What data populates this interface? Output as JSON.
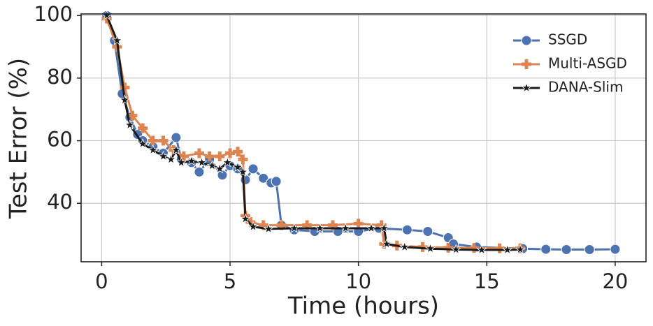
{
  "chart_data": {
    "type": "line",
    "xlabel": "Time (hours)",
    "ylabel": "Test Error (%)",
    "xlim": [
      -0.8,
      21.2
    ],
    "ylim": [
      21.3,
      100.5
    ],
    "xticks": [
      0,
      5,
      10,
      15,
      20
    ],
    "yticks": [
      40,
      60,
      80,
      100
    ],
    "grid": true,
    "legend": "upper right",
    "series": [
      {
        "name": "SSGD",
        "color": "#4c72b0",
        "marker": "circle",
        "x": [
          0.2,
          0.5,
          0.8,
          1.1,
          1.4,
          1.6,
          2.0,
          2.4,
          2.9,
          3.1,
          3.5,
          3.8,
          4.2,
          4.7,
          5.0,
          5.3,
          5.6,
          5.9,
          6.3,
          6.6,
          6.8,
          7.0,
          7.5,
          8.3,
          9.2,
          10.0,
          10.8,
          11.9,
          12.7,
          13.5,
          13.7,
          14.6,
          16.4,
          17.3,
          18.1,
          19.0,
          20.0
        ],
        "values": [
          100,
          92,
          75,
          67.5,
          62,
          60,
          58,
          56,
          61,
          54,
          53,
          50,
          54,
          49,
          52,
          51,
          47.5,
          51,
          48,
          46.5,
          47,
          33,
          31.5,
          31,
          31,
          31,
          32,
          31.5,
          31,
          29,
          27,
          26,
          25.5,
          25.3,
          25.2,
          25.2,
          25.3
        ]
      },
      {
        "name": "Multi-ASGD",
        "color": "#dd8452",
        "marker": "plus",
        "x": [
          0.2,
          0.6,
          0.9,
          1.2,
          1.6,
          2.0,
          2.4,
          2.8,
          3.2,
          3.8,
          4.2,
          4.6,
          5.0,
          5.3,
          5.5,
          5.6,
          5.8,
          6.3,
          7.0,
          8.0,
          9.0,
          10.0,
          10.9,
          11.0,
          11.5,
          12.5,
          13.5,
          14.5,
          15.5,
          16.3
        ],
        "values": [
          99,
          90,
          77,
          68,
          64,
          60,
          60,
          57,
          55,
          56,
          55,
          55,
          56,
          56.5,
          54,
          36,
          34,
          33,
          33,
          33,
          33,
          33.5,
          33,
          27,
          26.5,
          26,
          25.8,
          25.7,
          25.6,
          25.6
        ]
      },
      {
        "name": "DANA-Slim",
        "color": "#1a1a1a",
        "marker": "star",
        "x": [
          0.2,
          0.6,
          0.9,
          1.1,
          1.6,
          2.0,
          2.4,
          2.7,
          2.9,
          3.1,
          3.5,
          3.9,
          4.3,
          4.6,
          4.9,
          5.3,
          5.5,
          5.6,
          5.9,
          6.5,
          7.5,
          8.5,
          9.5,
          10.5,
          11.0,
          11.1,
          11.8,
          12.8,
          13.8,
          14.8,
          15.8,
          16.3
        ],
        "values": [
          100,
          92,
          73,
          65,
          59,
          57,
          55,
          54,
          57,
          53,
          53.5,
          53,
          52,
          51,
          53,
          51.5,
          50,
          35,
          32.5,
          31.8,
          32,
          32,
          32,
          32,
          32,
          27,
          26,
          25.5,
          25.2,
          25.1,
          25.1,
          25.2
        ]
      }
    ]
  }
}
